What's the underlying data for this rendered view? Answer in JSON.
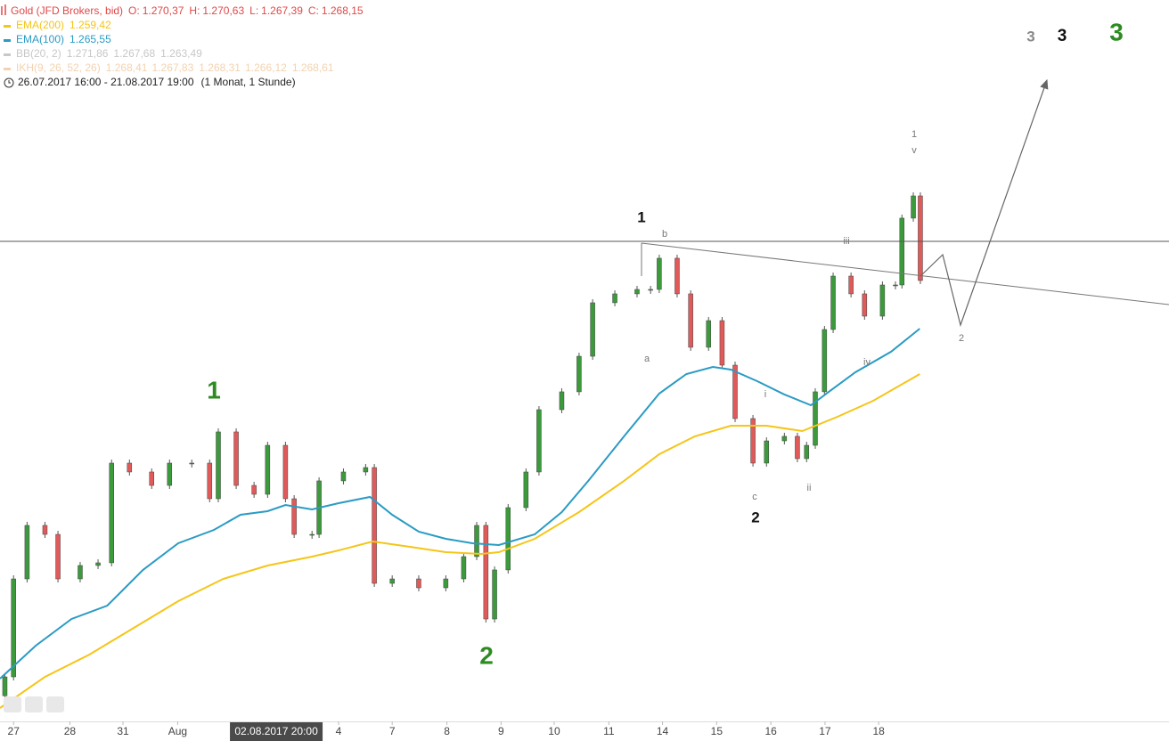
{
  "chart_data": {
    "type": "candlestick",
    "title": "Gold (JFD Brokers, bid)",
    "ohlc": [
      {
        "name": "O:",
        "value": 1270.37,
        "label": "1.270,37"
      },
      {
        "name": "H:",
        "value": 1270.63,
        "label": "1.270,63"
      },
      {
        "name": "L:",
        "value": 1267.39,
        "label": "1.267,39"
      },
      {
        "name": "C:",
        "value": 1268.15,
        "label": "1.268,15"
      }
    ],
    "indicators": [
      {
        "name": "BB(20, 2)",
        "color": "#c8c8c8",
        "values": [
          {
            "value": 1271.86,
            "label": "1.271,86"
          },
          {
            "value": 1267.68,
            "label": "1.267,68"
          },
          {
            "value": 1263.49,
            "label": "1.263,49"
          }
        ]
      },
      {
        "name": "IKH(9, 26, 52, 26)",
        "color": "#f3d2b0",
        "values": [
          {
            "value": 1268.41,
            "label": "1.268,41"
          },
          {
            "value": 1267.83,
            "label": "1.267,83"
          },
          {
            "value": 1268.31,
            "label": "1.268,31"
          },
          {
            "value": 1266.12,
            "label": "1.266,12"
          },
          {
            "value": 1268.61,
            "label": "1.268,61"
          }
        ]
      }
    ],
    "range_text": "26.07.2017 16:00 - 21.08.2017 19:00",
    "interval_text": "(1 Monat, 1 Stunde)",
    "xlim": [
      -0.25,
      21.33
    ],
    "ylim": [
      1212.54,
      1309.9
    ],
    "xticks": [
      {
        "value": 0,
        "label": "27"
      },
      {
        "value": 1.04,
        "label": "28"
      },
      {
        "value": 2.02,
        "label": "31"
      },
      {
        "value": 3.03,
        "label": "Aug"
      },
      {
        "value": 6.0,
        "label": "4"
      },
      {
        "value": 6.99,
        "label": "7"
      },
      {
        "value": 8.0,
        "label": "8"
      },
      {
        "value": 9.0,
        "label": "9"
      },
      {
        "value": 9.98,
        "label": "10"
      },
      {
        "value": 10.99,
        "label": "11"
      },
      {
        "value": 11.98,
        "label": "14"
      },
      {
        "value": 12.98,
        "label": "15"
      },
      {
        "value": 13.98,
        "label": "16"
      },
      {
        "value": 14.98,
        "label": "17"
      },
      {
        "value": 15.97,
        "label": "18"
      }
    ],
    "cursor_label": {
      "value": 4.85,
      "label": "02.08.2017 20:00"
    },
    "candles": {
      "up_color": "#3c9a3c",
      "down_color": "#e05a5a",
      "x": [
        -0.16,
        0,
        0.25,
        0.58,
        0.82,
        1.23,
        1.56,
        1.81,
        2.14,
        2.55,
        2.88,
        3.29,
        3.62,
        3.78,
        4.11,
        4.44,
        4.69,
        5.02,
        5.18,
        5.51,
        5.64,
        6.09,
        6.5,
        6.66,
        6.99,
        7.48,
        7.98,
        8.31,
        8.55,
        8.72,
        8.88,
        9.13,
        9.46,
        9.7,
        10.12,
        10.44,
        10.69,
        11.1,
        11.51,
        11.76,
        11.92,
        12.25,
        12.5,
        12.83,
        13.08,
        13.32,
        13.65,
        13.9,
        14.23,
        14.47,
        14.64,
        14.8,
        14.97,
        15.13,
        15.46,
        15.71,
        16.04,
        16.28,
        16.4,
        16.61,
        16.74
      ],
      "open": [
        1216.0,
        1218.55,
        1231.77,
        1238.99,
        1237.78,
        1231.77,
        1233.58,
        1233.94,
        1247.4,
        1246.2,
        1244.39,
        1247.4,
        1247.4,
        1242.59,
        1251.61,
        1244.39,
        1243.19,
        1249.8,
        1242.59,
        1237.78,
        1237.78,
        1245.0,
        1246.2,
        1246.8,
        1231.17,
        1231.77,
        1230.57,
        1231.77,
        1234.78,
        1238.99,
        1226.36,
        1232.98,
        1241.39,
        1246.2,
        1254.61,
        1257.02,
        1261.82,
        1269.04,
        1270.24,
        1270.84,
        1270.84,
        1275.05,
        1270.24,
        1263.03,
        1266.63,
        1260.62,
        1253.41,
        1247.4,
        1250.4,
        1251.01,
        1248.0,
        1249.8,
        1257.02,
        1265.43,
        1272.64,
        1270.24,
        1267.23,
        1271.44,
        1271.44,
        1280.46,
        1283.46
      ],
      "close": [
        1218.55,
        1231.77,
        1238.99,
        1237.78,
        1231.77,
        1233.58,
        1233.94,
        1247.4,
        1246.2,
        1244.39,
        1247.4,
        1247.4,
        1242.59,
        1251.61,
        1244.39,
        1243.19,
        1249.8,
        1242.59,
        1237.78,
        1237.78,
        1245.0,
        1246.2,
        1246.8,
        1231.17,
        1231.77,
        1230.57,
        1231.77,
        1234.78,
        1238.99,
        1226.36,
        1232.98,
        1241.39,
        1246.2,
        1254.61,
        1257.02,
        1261.82,
        1269.04,
        1270.24,
        1270.84,
        1270.84,
        1275.05,
        1270.24,
        1263.03,
        1266.63,
        1260.62,
        1253.41,
        1247.4,
        1250.4,
        1251.01,
        1248.0,
        1249.8,
        1257.02,
        1265.43,
        1272.64,
        1270.24,
        1267.23,
        1271.44,
        1271.44,
        1280.46,
        1283.46,
        1272.04
      ]
    },
    "series": [
      {
        "name": "EMA(200)",
        "color": "#f5c518",
        "legend_value": {
          "value": 1259.42,
          "label": "1.259,42"
        },
        "x": [
          -0.25,
          0.58,
          1.4,
          2.22,
          3.04,
          3.87,
          4.69,
          5.51,
          6.0,
          6.63,
          7.32,
          7.98,
          8.63,
          8.96,
          9.62,
          10.44,
          11.27,
          11.92,
          12.58,
          13.24,
          13.9,
          14.56,
          15.21,
          15.87,
          16.73
        ],
        "values": [
          1214.34,
          1218.55,
          1221.56,
          1225.16,
          1228.77,
          1231.77,
          1233.58,
          1234.78,
          1235.62,
          1236.82,
          1236.1,
          1235.38,
          1235.14,
          1235.38,
          1237.18,
          1240.79,
          1245.0,
          1248.6,
          1251.01,
          1252.45,
          1252.45,
          1251.73,
          1253.65,
          1255.81,
          1259.42
        ]
      },
      {
        "name": "EMA(100)",
        "color": "#2a9bc4",
        "legend_value": {
          "value": 1265.55,
          "label": "1.265,55"
        },
        "x": [
          -0.25,
          0.41,
          1.07,
          1.73,
          2.39,
          3.04,
          3.7,
          4.19,
          4.69,
          5.02,
          5.51,
          6.0,
          6.58,
          6.99,
          7.48,
          7.98,
          8.47,
          8.96,
          9.62,
          10.12,
          10.61,
          11.27,
          11.92,
          12.42,
          12.91,
          13.24,
          13.73,
          14.23,
          14.72,
          15.05,
          15.54,
          16.2,
          16.73
        ],
        "values": [
          1218.31,
          1222.76,
          1226.36,
          1228.17,
          1232.98,
          1236.58,
          1238.38,
          1240.43,
          1240.91,
          1241.75,
          1241.15,
          1241.99,
          1242.83,
          1240.43,
          1238.14,
          1237.18,
          1236.58,
          1236.34,
          1237.78,
          1240.79,
          1245.0,
          1251.01,
          1256.78,
          1259.42,
          1260.38,
          1260.02,
          1258.46,
          1256.66,
          1255.21,
          1257.02,
          1259.66,
          1262.43,
          1265.55
        ]
      }
    ],
    "annotations": [
      {
        "text": "1",
        "color": "#2e8b22"
      },
      {
        "text": "2",
        "color": "#2e8b22"
      },
      {
        "text": "3",
        "color": "#2e8b22"
      },
      {
        "text": "1",
        "color": "#111111"
      },
      {
        "text": "2",
        "color": "#111111"
      },
      {
        "text": "3",
        "color": "#111111"
      },
      {
        "text": "3",
        "color": "#888888"
      },
      {
        "text": "b",
        "color": "#777777"
      },
      {
        "text": "a",
        "color": "#777777"
      },
      {
        "text": "c",
        "color": "#777777"
      },
      {
        "text": "i",
        "color": "#777777"
      },
      {
        "text": "ii",
        "color": "#777777"
      },
      {
        "text": "iii",
        "color": "#777777"
      },
      {
        "text": "iv",
        "color": "#777777"
      },
      {
        "text": "v",
        "color": "#777777"
      },
      {
        "text": "1",
        "color": "#777777"
      },
      {
        "text": "2",
        "color": "#777777"
      }
    ]
  }
}
